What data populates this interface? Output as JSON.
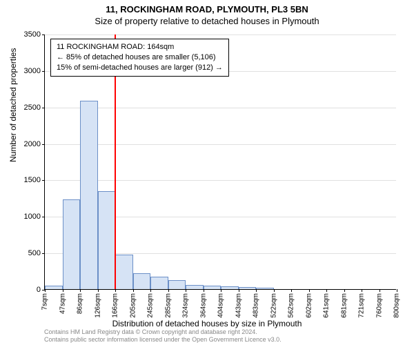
{
  "title_line1": "11, ROCKINGHAM ROAD, PLYMOUTH, PL3 5BN",
  "title_line2": "Size of property relative to detached houses in Plymouth",
  "y_axis_title": "Number of detached properties",
  "x_axis_title": "Distribution of detached houses by size in Plymouth",
  "footer_line1": "Contains HM Land Registry data © Crown copyright and database right 2024.",
  "footer_line2": "Contains public sector information licensed under the Open Government Licence v3.0.",
  "info_box": {
    "line1": "11 ROCKINGHAM ROAD: 164sqm",
    "line2": "← 85% of detached houses are smaller (5,106)",
    "line3": "15% of semi-detached houses are larger (912) →"
  },
  "chart": {
    "type": "histogram",
    "ylim": [
      0,
      3500
    ],
    "ytick_step": 500,
    "yticks": [
      0,
      500,
      1000,
      1500,
      2000,
      2500,
      3000,
      3500
    ],
    "xticks": [
      "7sqm",
      "47sqm",
      "86sqm",
      "126sqm",
      "166sqm",
      "205sqm",
      "245sqm",
      "285sqm",
      "324sqm",
      "364sqm",
      "404sqm",
      "443sqm",
      "483sqm",
      "522sqm",
      "562sqm",
      "602sqm",
      "641sqm",
      "681sqm",
      "721sqm",
      "760sqm",
      "800sqm"
    ],
    "bar_values": [
      50,
      1230,
      2580,
      1340,
      470,
      220,
      170,
      120,
      60,
      50,
      40,
      30,
      20,
      0,
      0,
      0,
      0,
      0,
      0,
      0
    ],
    "bar_fill": "#d6e3f5",
    "bar_stroke": "#6b8fc7",
    "background_color": "#ffffff",
    "grid_color": "#e0e0e0",
    "marker": {
      "value_sqm": 164,
      "color": "#ff0000"
    },
    "label_fontsize": 11,
    "title_fontsize": 13
  }
}
